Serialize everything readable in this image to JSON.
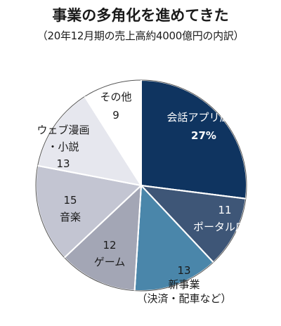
{
  "chart_data": {
    "type": "pie",
    "title": "事業の多角化を進めてきた",
    "subtitle": "（20年12月期の売上高約4000億円の内訳）",
    "categories": [
      "会話アプリ広告",
      "ポータル広告",
      "新事業（決済・配車など）",
      "ゲーム",
      "音楽",
      "ウェブ漫画・小説",
      "その他"
    ],
    "values": [
      27,
      11,
      13,
      12,
      15,
      13,
      9
    ],
    "slices": [
      {
        "label_lines": [
          "会話アプリ広告"
        ],
        "value_text": "27%",
        "color": "#0f3460",
        "text_color": "#ffffff"
      },
      {
        "label_lines": [
          "ポータル広告"
        ],
        "value_text": "11",
        "color": "#3e5677",
        "text_color": "#ffffff"
      },
      {
        "label_lines": [
          "新事業",
          "（決済・配車など）"
        ],
        "value_text": "13",
        "color": "#4a86aa",
        "text_color": "#1a1a1a"
      },
      {
        "label_lines": [
          "ゲーム"
        ],
        "value_text": "12",
        "color": "#a3a6b5",
        "text_color": "#1a1a1a"
      },
      {
        "label_lines": [
          "音楽"
        ],
        "value_text": "15",
        "color": "#c3c5d2",
        "text_color": "#1a1a1a"
      },
      {
        "label_lines": [
          "ウェブ漫画",
          "・小説"
        ],
        "value_text": "13",
        "color": "#e6e7ee",
        "text_color": "#1a1a1a"
      },
      {
        "label_lines": [
          "その他"
        ],
        "value_text": "9",
        "color": "#ffffff",
        "text_color": "#1a1a1a"
      }
    ]
  }
}
